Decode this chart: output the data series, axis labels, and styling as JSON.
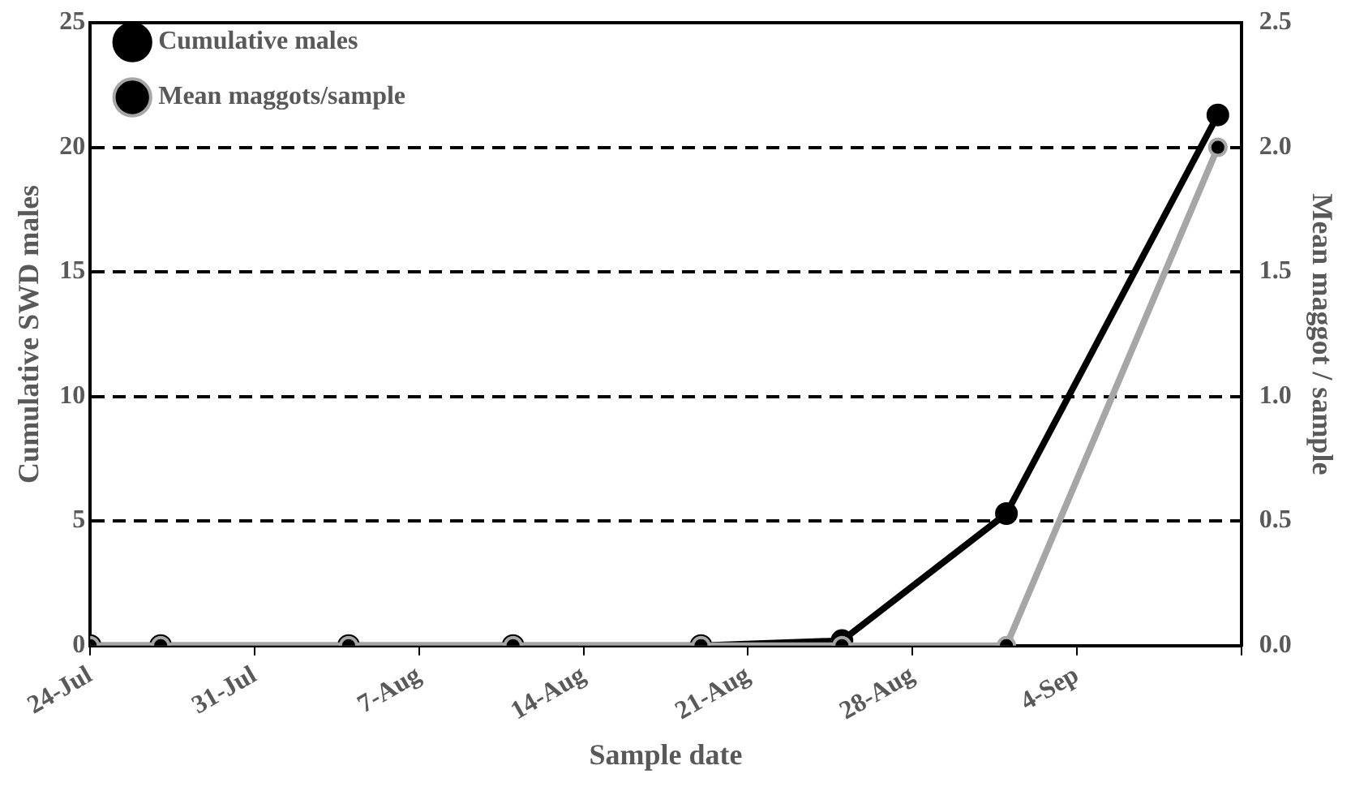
{
  "chart_data": {
    "type": "line",
    "xlabel": "Sample date",
    "ylabel": "Cumulative SWD males",
    "y2label": "Mean maggot / sample",
    "x": [
      "--07-24",
      "--07-27",
      "--08-04",
      "--08-11",
      "--08-19",
      "--08-25",
      "--09-01",
      "--09-10"
    ],
    "series": [
      {
        "name": "Cumulative males",
        "color": "#000000",
        "values": [
          0,
          0,
          0,
          0,
          0,
          0.2,
          5.3,
          21.3
        ]
      },
      {
        "name": "Mean maggots/sample",
        "color": "#a6a6a6",
        "axis": "y2",
        "values": [
          0,
          0,
          0,
          0,
          0,
          0,
          0,
          2.0
        ]
      }
    ],
    "xlim": [
      "--07-24",
      "--09-11"
    ],
    "xticks": [
      {
        "value": "--07-24",
        "label": "24-Jul"
      },
      {
        "value": "--07-31",
        "label": "31-Jul"
      },
      {
        "value": "--08-07",
        "label": "7-Aug"
      },
      {
        "value": "--08-14",
        "label": "14-Aug"
      },
      {
        "value": "--08-21",
        "label": "21-Aug"
      },
      {
        "value": "--08-28",
        "label": "28-Aug"
      },
      {
        "value": "--09-04",
        "label": "4-Sep"
      },
      {
        "value": "--09-11",
        "label": null
      }
    ],
    "ylim": [
      0,
      25
    ],
    "yticks": [
      0,
      5,
      10,
      15,
      20,
      25
    ],
    "y2lim": [
      0,
      2.5
    ],
    "y2ticks": [
      {
        "value": 0,
        "label": "0.0"
      },
      {
        "value": 0.5,
        "label": "0.5"
      },
      {
        "value": 1,
        "label": "1.0"
      },
      {
        "value": 1.5,
        "label": "1.5"
      },
      {
        "value": 2,
        "label": "2.0"
      },
      {
        "value": 2.5,
        "label": "2.5"
      }
    ],
    "grid": "y",
    "legend": "top left",
    "marker": "circle",
    "line_style": "solid"
  }
}
